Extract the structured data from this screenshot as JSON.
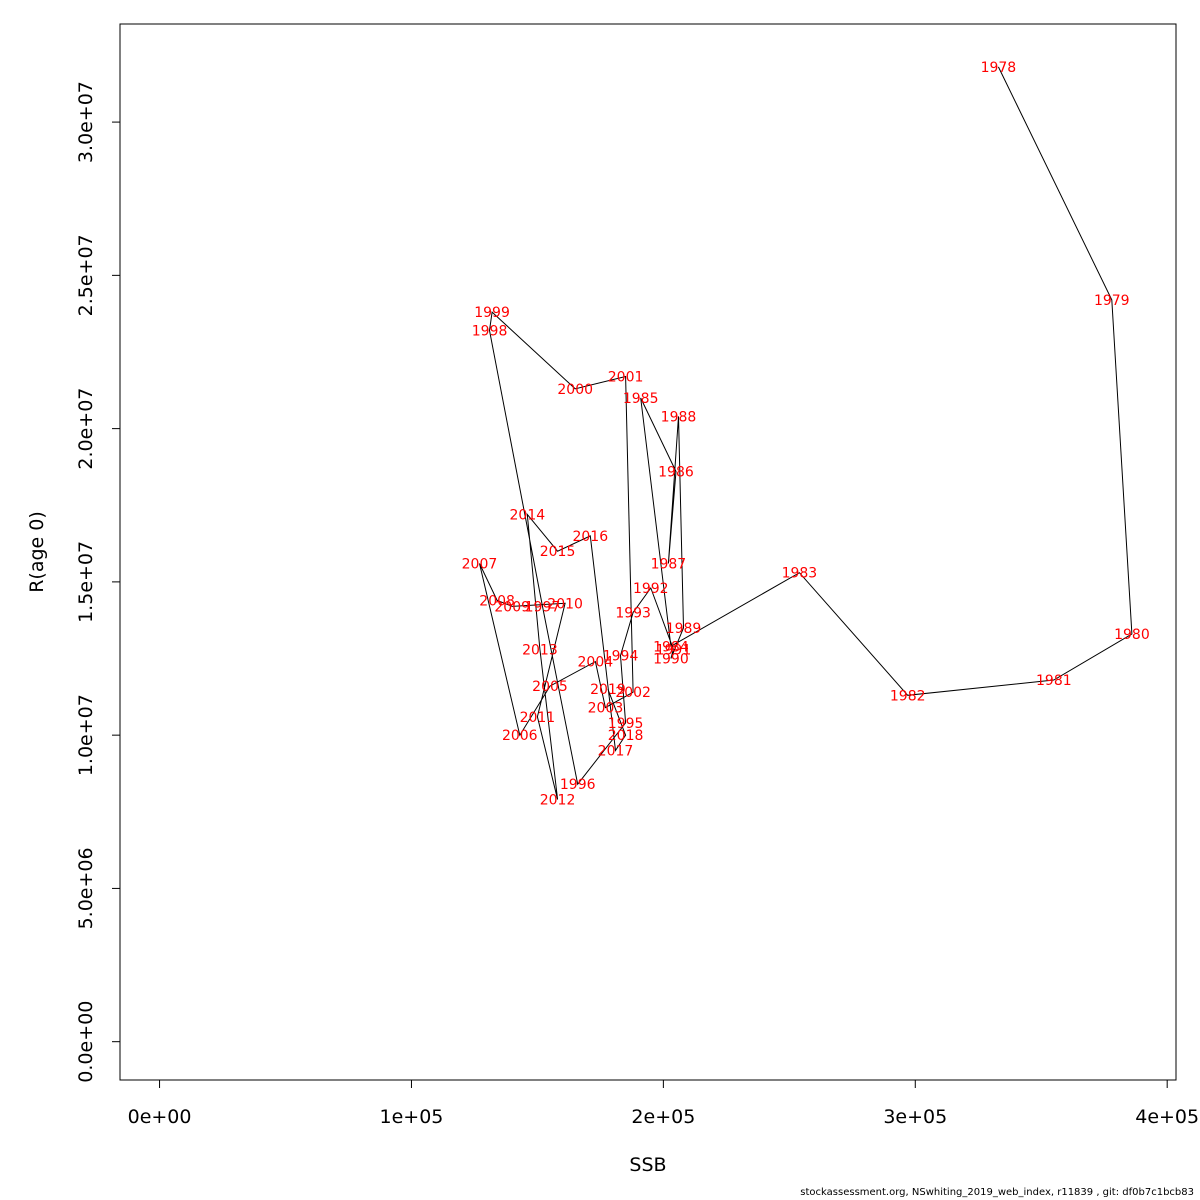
{
  "chart_data": {
    "type": "scatter",
    "connected": true,
    "xlabel": "SSB",
    "ylabel": "R(age 0)",
    "xlim": [
      -15700,
      403500
    ],
    "ylim": [
      -1250000,
      33200000
    ],
    "x_ticks": [
      {
        "value": 0,
        "label": "0e+00"
      },
      {
        "value": 100000,
        "label": "1e+05"
      },
      {
        "value": 200000,
        "label": "2e+05"
      },
      {
        "value": 300000,
        "label": "3e+05"
      },
      {
        "value": 400000,
        "label": "4e+05"
      }
    ],
    "y_ticks": [
      {
        "value": 0,
        "label": "0.0e+00"
      },
      {
        "value": 5000000,
        "label": "5.0e+06"
      },
      {
        "value": 10000000,
        "label": "1.0e+07"
      },
      {
        "value": 15000000,
        "label": "1.5e+07"
      },
      {
        "value": 20000000,
        "label": "2.0e+07"
      },
      {
        "value": 25000000,
        "label": "2.5e+07"
      },
      {
        "value": 30000000,
        "label": "3.0e+07"
      }
    ],
    "label_color": "#ff0000",
    "line_color": "#000000",
    "points": [
      {
        "year": "1978",
        "x": 333000,
        "y": 31800000
      },
      {
        "year": "1979",
        "x": 378000,
        "y": 24200000
      },
      {
        "year": "1980",
        "x": 386000,
        "y": 13300000
      },
      {
        "year": "1981",
        "x": 355000,
        "y": 11800000
      },
      {
        "year": "1982",
        "x": 297000,
        "y": 11300000
      },
      {
        "year": "1983",
        "x": 254000,
        "y": 15300000
      },
      {
        "year": "1984",
        "x": 203000,
        "y": 12900000
      },
      {
        "year": "1985",
        "x": 191000,
        "y": 21000000
      },
      {
        "year": "1986",
        "x": 205000,
        "y": 18600000
      },
      {
        "year": "1987",
        "x": 202000,
        "y": 15600000
      },
      {
        "year": "1988",
        "x": 206000,
        "y": 20400000
      },
      {
        "year": "1989",
        "x": 208000,
        "y": 13500000
      },
      {
        "year": "1990",
        "x": 203000,
        "y": 12500000
      },
      {
        "year": "1991",
        "x": 204000,
        "y": 12800000
      },
      {
        "year": "1992",
        "x": 195000,
        "y": 14800000
      },
      {
        "year": "1993",
        "x": 188000,
        "y": 14000000
      },
      {
        "year": "1994",
        "x": 183000,
        "y": 12600000
      },
      {
        "year": "1995",
        "x": 185000,
        "y": 10400000
      },
      {
        "year": "1996",
        "x": 166000,
        "y": 8400000
      },
      {
        "year": "1997",
        "x": 152000,
        "y": 14200000
      },
      {
        "year": "1998",
        "x": 131000,
        "y": 23200000
      },
      {
        "year": "1999",
        "x": 132000,
        "y": 23800000
      },
      {
        "year": "2000",
        "x": 165000,
        "y": 21300000
      },
      {
        "year": "2001",
        "x": 185000,
        "y": 21700000
      },
      {
        "year": "2002",
        "x": 188000,
        "y": 11400000
      },
      {
        "year": "2003",
        "x": 177000,
        "y": 10900000
      },
      {
        "year": "2004",
        "x": 173000,
        "y": 12400000
      },
      {
        "year": "2005",
        "x": 155000,
        "y": 11600000
      },
      {
        "year": "2006",
        "x": 143000,
        "y": 10000000
      },
      {
        "year": "2007",
        "x": 127000,
        "y": 15600000
      },
      {
        "year": "2008",
        "x": 134000,
        "y": 14400000
      },
      {
        "year": "2009",
        "x": 140000,
        "y": 14200000
      },
      {
        "year": "2010",
        "x": 161000,
        "y": 14300000
      },
      {
        "year": "2011",
        "x": 150000,
        "y": 10600000
      },
      {
        "year": "2012",
        "x": 158000,
        "y": 7900000
      },
      {
        "year": "2013",
        "x": 151000,
        "y": 12800000
      },
      {
        "year": "2014",
        "x": 146000,
        "y": 17200000
      },
      {
        "year": "2015",
        "x": 158000,
        "y": 16000000
      },
      {
        "year": "2016",
        "x": 171000,
        "y": 16500000
      },
      {
        "year": "2017",
        "x": 181000,
        "y": 9500000
      },
      {
        "year": "2018",
        "x": 185000,
        "y": 10000000
      },
      {
        "year": "2019",
        "x": 178000,
        "y": 11500000
      }
    ]
  },
  "footer": {
    "text": "stockassessment.org, NSwhiting_2019_web_index, r11839 , git: df0b7c1bcb83"
  }
}
